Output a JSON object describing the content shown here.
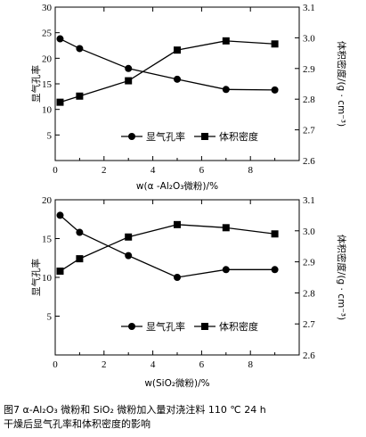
{
  "chart_data": [
    {
      "type": "line",
      "xlabel": "w(α -Al₂O₃微粉)/%",
      "ylabel": "显气孔率",
      "y2label": "体积密度/(g · cm⁻³)",
      "xlim": [
        0,
        10
      ],
      "ylim": [
        0,
        30
      ],
      "y2lim": [
        2.6,
        3.1
      ],
      "xticks": [
        0,
        2,
        4,
        6,
        8
      ],
      "yticks": [
        5,
        10,
        15,
        20,
        25,
        30
      ],
      "y2ticks": [
        2.6,
        2.7,
        2.8,
        2.9,
        3.0,
        3.1
      ],
      "xtick_labels": [
        "0",
        "2",
        "4",
        "6",
        "8"
      ],
      "ytick_labels": [
        "5",
        "10",
        "15",
        "20",
        "25",
        "30"
      ],
      "y2tick_labels": [
        "2.6",
        "2.7",
        "2.8",
        "2.9",
        "3.0",
        "3.1"
      ],
      "legend": "bottom-right",
      "series": [
        {
          "name": "显气孔率",
          "axis": "left",
          "marker": "circle",
          "x": [
            0.2,
            1,
            3,
            5,
            7,
            9
          ],
          "y": [
            23.8,
            21.9,
            18.0,
            15.9,
            13.9,
            13.8
          ]
        },
        {
          "name": "体积密度",
          "axis": "right",
          "marker": "square",
          "x": [
            0.2,
            1,
            3,
            5,
            7,
            9
          ],
          "y": [
            2.79,
            2.81,
            2.86,
            2.96,
            2.99,
            2.98
          ]
        }
      ]
    },
    {
      "type": "line",
      "xlabel": "w(SiO₂微粉)/%",
      "ylabel": "显气孔率",
      "y2label": "体积密度/(g · cm⁻³)",
      "xlim": [
        0,
        10
      ],
      "ylim": [
        0,
        20
      ],
      "y2lim": [
        2.6,
        3.1
      ],
      "xticks": [
        0,
        2,
        4,
        6,
        8
      ],
      "yticks": [
        5,
        10,
        15,
        20
      ],
      "y2ticks": [
        2.6,
        2.7,
        2.8,
        2.9,
        3.0,
        3.1
      ],
      "xtick_labels": [
        "0",
        "2",
        "4",
        "6",
        "8"
      ],
      "ytick_labels": [
        "5",
        "10",
        "15",
        "20"
      ],
      "y2tick_labels": [
        "2.6",
        "2.7",
        "2.8",
        "2.9",
        "3.0",
        "3.1"
      ],
      "legend": "bottom-right",
      "series": [
        {
          "name": "显气孔率",
          "axis": "left",
          "marker": "circle",
          "x": [
            0.2,
            1,
            3,
            5,
            7,
            9
          ],
          "y": [
            18.0,
            15.8,
            12.8,
            10.0,
            11.0,
            11.0
          ]
        },
        {
          "name": "体积密度",
          "axis": "right",
          "marker": "square",
          "x": [
            0.2,
            1,
            3,
            5,
            7,
            9
          ],
          "y": [
            2.87,
            2.91,
            2.98,
            3.02,
            3.01,
            2.99
          ]
        }
      ]
    }
  ],
  "caption": {
    "line1": "图7    α-Al₂O₃ 微粉和 SiO₂ 微粉加入量对浇注料 110 ℃ 24 h",
    "line2": "干燥后显气孔率和体积密度的影响"
  }
}
